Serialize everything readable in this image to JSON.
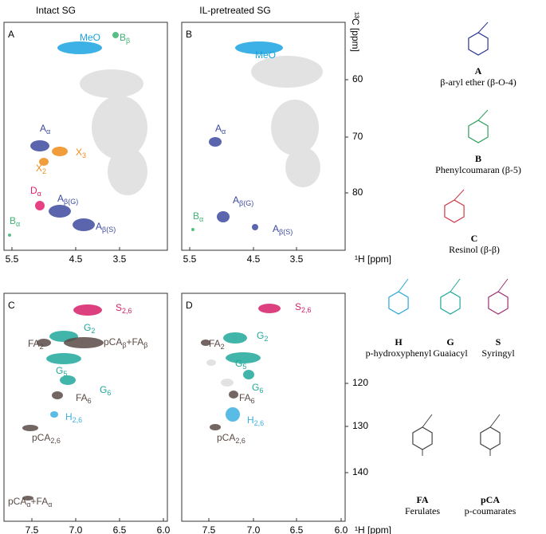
{
  "columns": [
    "Intact SG",
    "IL-pretreated SG"
  ],
  "panels": [
    {
      "label": "A",
      "xticks": [
        "5.5",
        "4.5",
        "3.5"
      ],
      "peaks": [
        {
          "parts": [
            [
              "MeO",
              ""
            ]
          ],
          "color": "#1aa3e0"
        },
        {
          "parts": [
            [
              "B",
              "β"
            ]
          ],
          "color": "#3cb371"
        },
        {
          "parts": [
            [
              "A",
              "α"
            ]
          ],
          "color": "#3d4aa0"
        },
        {
          "parts": [
            [
              "X",
              "3"
            ]
          ],
          "color": "#f08c1a"
        },
        {
          "parts": [
            [
              "X",
              "2"
            ]
          ],
          "color": "#f08c1a"
        },
        {
          "parts": [
            [
              "D",
              "α"
            ]
          ],
          "color": "#e0206e"
        },
        {
          "parts": [
            [
              "A",
              "β(G)"
            ]
          ],
          "color": "#3d4aa0"
        },
        {
          "parts": [
            [
              "A",
              "β(S)"
            ]
          ],
          "color": "#3d4aa0"
        },
        {
          "parts": [
            [
              "B",
              "α"
            ]
          ],
          "color": "#3cb371"
        }
      ]
    },
    {
      "label": "B",
      "xticks": [
        "5.5",
        "4.5",
        "3.5"
      ],
      "xunit": "¹H [ppm]",
      "peaks": [
        {
          "parts": [
            [
              "MeO",
              ""
            ]
          ],
          "color": "#1aa3e0"
        },
        {
          "parts": [
            [
              "A",
              "α"
            ]
          ],
          "color": "#3d4aa0"
        },
        {
          "parts": [
            [
              "A",
              "β(G)"
            ]
          ],
          "color": "#3d4aa0"
        },
        {
          "parts": [
            [
              "A",
              "β(S)"
            ]
          ],
          "color": "#3d4aa0"
        },
        {
          "parts": [
            [
              "B",
              "α"
            ]
          ],
          "color": "#3cb371"
        }
      ]
    },
    {
      "label": "C",
      "xticks": [
        "7.5",
        "7.0",
        "6.5",
        "6.0"
      ],
      "peaks": [
        {
          "parts": [
            [
              "S",
              "2,6"
            ]
          ],
          "color": "#d61f69"
        },
        {
          "parts": [
            [
              "G",
              "2"
            ]
          ],
          "color": "#20a89a"
        },
        {
          "parts": [
            [
              "FA",
              "2"
            ]
          ],
          "color": "#5a4a45"
        },
        {
          "parts": [
            [
              "pCA",
              "β"
            ],
            [
              "+FA",
              "β"
            ]
          ],
          "color": "#5a4a45"
        },
        {
          "parts": [
            [
              "G",
              "5"
            ]
          ],
          "color": "#20a89a"
        },
        {
          "parts": [
            [
              "G",
              "6"
            ]
          ],
          "color": "#20a89a"
        },
        {
          "parts": [
            [
              "FA",
              "6"
            ]
          ],
          "color": "#5a4a45"
        },
        {
          "parts": [
            [
              "H",
              "2,6"
            ]
          ],
          "color": "#3bb0e0"
        },
        {
          "parts": [
            [
              "pCA",
              "2,6"
            ]
          ],
          "color": "#5a4a45"
        },
        {
          "parts": [
            [
              "pCA",
              "α"
            ],
            [
              "+FA",
              "α"
            ]
          ],
          "color": "#5a4a45"
        }
      ]
    },
    {
      "label": "D",
      "xticks": [
        "7.5",
        "7.0",
        "6.5",
        "6.0"
      ],
      "xunit": "¹H [ppm]",
      "peaks": [
        {
          "parts": [
            [
              "S",
              "2,6"
            ]
          ],
          "color": "#d61f69"
        },
        {
          "parts": [
            [
              "G",
              "2"
            ]
          ],
          "color": "#20a89a"
        },
        {
          "parts": [
            [
              "FA",
              "2"
            ]
          ],
          "color": "#5a4a45"
        },
        {
          "parts": [
            [
              "G",
              "5"
            ]
          ],
          "color": "#20a89a"
        },
        {
          "parts": [
            [
              "G",
              "6"
            ]
          ],
          "color": "#20a89a"
        },
        {
          "parts": [
            [
              "FA",
              "6"
            ]
          ],
          "color": "#5a4a45"
        },
        {
          "parts": [
            [
              "H",
              "2,6"
            ]
          ],
          "color": "#3bb0e0"
        },
        {
          "parts": [
            [
              "pCA",
              "2,6"
            ]
          ],
          "color": "#5a4a45"
        }
      ]
    }
  ],
  "y_axes": [
    {
      "unit": "¹³C [ppm]",
      "ticks": [
        "60",
        "70",
        "80"
      ]
    },
    {
      "ticks": [
        "120",
        "130",
        "140"
      ]
    }
  ],
  "structures": [
    {
      "letter": "A",
      "name": "β-aryl ether (β-O-4)"
    },
    {
      "letter": "B",
      "name": "Phenylcoumaran (β-5)"
    },
    {
      "letter": "C",
      "name": "Resinol (β-β)"
    },
    {
      "letter": "H",
      "name": "p-hydroxyphenyl"
    },
    {
      "letter": "G",
      "name": "Guaiacyl"
    },
    {
      "letter": "S",
      "name": "Syringyl"
    },
    {
      "letter": "FA",
      "name": "Ferulates"
    },
    {
      "letter": "pCA",
      "name": "p-coumarates"
    }
  ]
}
